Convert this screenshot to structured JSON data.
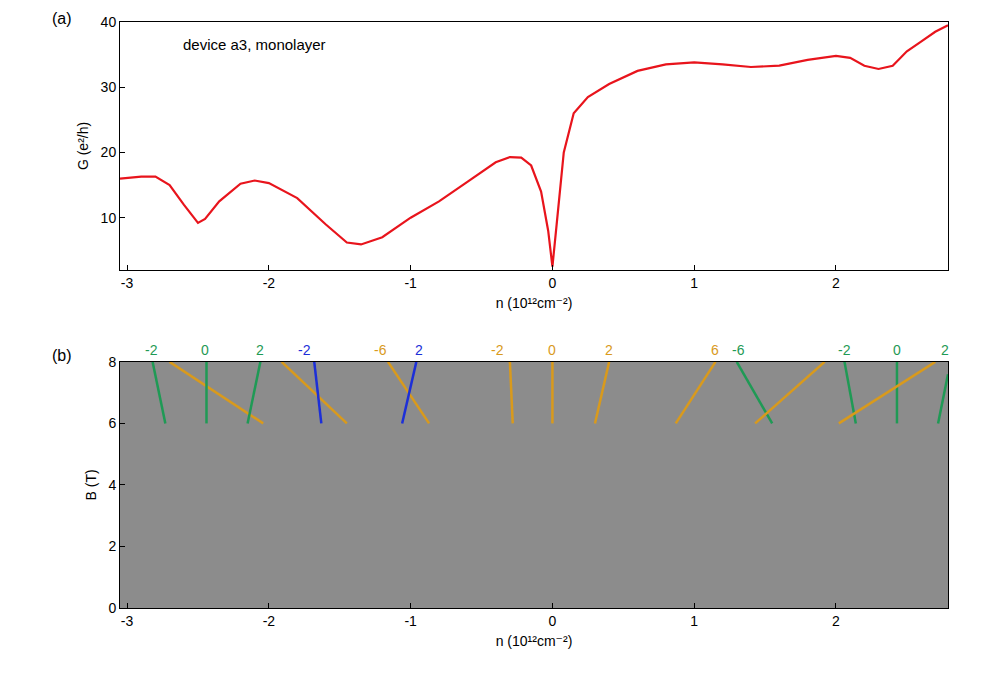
{
  "chart_data": [
    {
      "type": "line",
      "title": "(a)",
      "x_label": "n (10¹²cm⁻²)",
      "y_label": "G (e²/h)",
      "xlim": [
        -3.05,
        2.79
      ],
      "xticks": [
        -3,
        -2,
        -1,
        0,
        1,
        2
      ],
      "ylim": [
        2,
        40
      ],
      "yticks": [
        10,
        20,
        30,
        40
      ],
      "color": "#e8141c",
      "annotations": [
        {
          "text": "device a3, monolayer",
          "x": -2.62,
          "y": 36.5
        }
      ],
      "x": [
        -3.05,
        -2.9,
        -2.8,
        -2.7,
        -2.6,
        -2.5,
        -2.45,
        -2.35,
        -2.2,
        -2.1,
        -2.0,
        -1.8,
        -1.6,
        -1.45,
        -1.35,
        -1.2,
        -1.0,
        -0.8,
        -0.6,
        -0.4,
        -0.3,
        -0.22,
        -0.15,
        -0.08,
        -0.03,
        0,
        0.03,
        0.08,
        0.15,
        0.25,
        0.4,
        0.6,
        0.8,
        1.0,
        1.2,
        1.4,
        1.6,
        1.8,
        2.0,
        2.1,
        2.2,
        2.3,
        2.4,
        2.5,
        2.6,
        2.7,
        2.79
      ],
      "values": [
        16,
        16.3,
        16.3,
        15,
        12,
        9.2,
        9.8,
        12.5,
        15.2,
        15.7,
        15.3,
        13,
        9,
        6.2,
        5.9,
        7,
        10,
        12.5,
        15.5,
        18.5,
        19.3,
        19.2,
        18,
        14,
        8,
        2.5,
        9,
        20,
        26,
        28.5,
        30.5,
        32.5,
        33.5,
        33.8,
        33.5,
        33.1,
        33.3,
        34.2,
        34.8,
        34.5,
        33.3,
        32.8,
        33.3,
        35.5,
        37,
        38.5,
        39.5
      ]
    },
    {
      "type": "line",
      "title": "(b)",
      "x_label": "n (10¹²cm⁻²)",
      "y_label": "B (T)",
      "xlim": [
        -3.05,
        2.79
      ],
      "xticks": [
        -3,
        -2,
        -1,
        0,
        1,
        2
      ],
      "ylim": [
        0,
        8
      ],
      "yticks": [
        0,
        2,
        4,
        6,
        8
      ],
      "series": [
        {
          "color": "#1f9a55",
          "x": [
            -2.82,
            -2.73
          ],
          "values": [
            8,
            6
          ]
        },
        {
          "color": "#d99a1c",
          "x": [
            -2.7,
            -2.04
          ],
          "values": [
            8,
            6
          ]
        },
        {
          "color": "#1f9a55",
          "x": [
            -2.44,
            -2.44
          ],
          "values": [
            8,
            6
          ]
        },
        {
          "color": "#1f9a55",
          "x": [
            -2.06,
            -2.15
          ],
          "values": [
            8,
            6
          ]
        },
        {
          "color": "#d99a1c",
          "x": [
            -1.91,
            -1.45
          ],
          "values": [
            8,
            6
          ]
        },
        {
          "color": "#1c2fd8",
          "x": [
            -1.68,
            -1.63
          ],
          "values": [
            8,
            6
          ]
        },
        {
          "color": "#d99a1c",
          "x": [
            -1.16,
            -0.87
          ],
          "values": [
            8,
            6
          ]
        },
        {
          "color": "#1c2fd8",
          "x": [
            -0.96,
            -1.06
          ],
          "values": [
            8,
            6
          ]
        },
        {
          "color": "#d99a1c",
          "x": [
            -0.3,
            -0.28
          ],
          "values": [
            8,
            6
          ]
        },
        {
          "color": "#d99a1c",
          "x": [
            0,
            0
          ],
          "values": [
            8,
            6
          ]
        },
        {
          "color": "#d99a1c",
          "x": [
            0.4,
            0.3
          ],
          "values": [
            8,
            6
          ]
        },
        {
          "color": "#d99a1c",
          "x": [
            1.15,
            0.87
          ],
          "values": [
            8,
            6
          ]
        },
        {
          "color": "#1f9a55",
          "x": [
            1.3,
            1.55
          ],
          "values": [
            8,
            6
          ]
        },
        {
          "color": "#d99a1c",
          "x": [
            1.92,
            1.43
          ],
          "values": [
            8,
            6
          ]
        },
        {
          "color": "#1f9a55",
          "x": [
            2.06,
            2.14
          ],
          "values": [
            8,
            6
          ]
        },
        {
          "color": "#1f9a55",
          "x": [
            2.43,
            2.43
          ],
          "values": [
            8,
            6
          ]
        },
        {
          "color": "#d99a1c",
          "x": [
            2.7,
            2.02
          ],
          "values": [
            8,
            6
          ]
        },
        {
          "color": "#1f9a55",
          "x": [
            2.79,
            2.72
          ],
          "values": [
            7.6,
            6
          ]
        }
      ],
      "annotations": [
        {
          "text": "-2",
          "x": -2.83,
          "y": 8,
          "color": "#1f9a55"
        },
        {
          "text": "0",
          "x": -2.45,
          "y": 8,
          "color": "#1f9a55"
        },
        {
          "text": "2",
          "x": -2.06,
          "y": 8,
          "color": "#1f9a55"
        },
        {
          "text": "-2",
          "x": -1.75,
          "y": 8,
          "color": "#1c2fd8"
        },
        {
          "text": "-6",
          "x": -1.21,
          "y": 8,
          "color": "#d99a1c"
        },
        {
          "text": "2",
          "x": -0.94,
          "y": 8,
          "color": "#1c2fd8"
        },
        {
          "text": "-2",
          "x": -0.39,
          "y": 8,
          "color": "#d99a1c"
        },
        {
          "text": "0",
          "x": 0,
          "y": 8,
          "color": "#d99a1c"
        },
        {
          "text": "2",
          "x": 0.4,
          "y": 8,
          "color": "#d99a1c"
        },
        {
          "text": "6",
          "x": 1.15,
          "y": 8,
          "color": "#d99a1c"
        },
        {
          "text": "-6",
          "x": 1.31,
          "y": 8,
          "color": "#1f9a55"
        },
        {
          "text": "-2",
          "x": 2.06,
          "y": 8,
          "color": "#1f9a55"
        },
        {
          "text": "0",
          "x": 2.43,
          "y": 8,
          "color": "#1f9a55"
        },
        {
          "text": "2",
          "x": 2.77,
          "y": 8,
          "color": "#1f9a55"
        }
      ]
    }
  ]
}
